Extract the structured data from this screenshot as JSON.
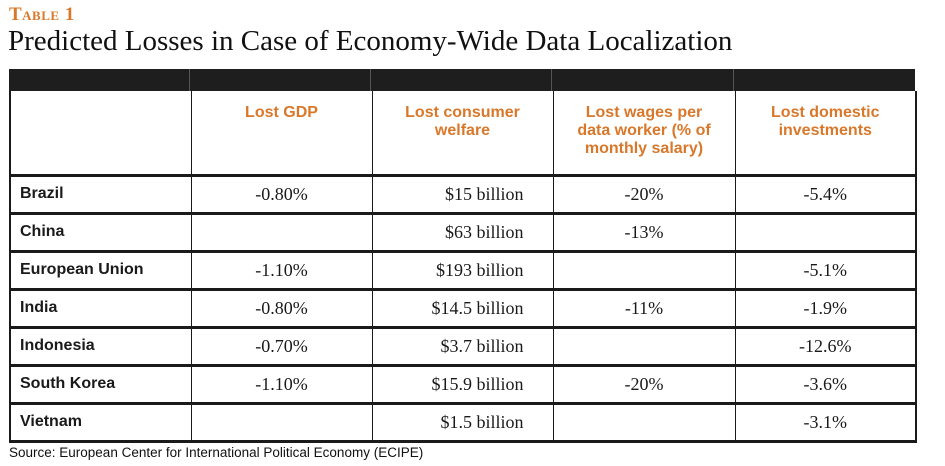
{
  "table_label": "Table 1",
  "title": "Predicted Losses in Case of Economy-Wide Data Localization",
  "headers": [
    "",
    "Lost GDP",
    "Lost consumer welfare",
    "Lost wages per data worker (% of monthly salary)",
    "Lost domestic investments"
  ],
  "header_lines": {
    "welfare": [
      "Lost consumer",
      "welfare"
    ],
    "wages": [
      "Lost wages per",
      "data worker (% of",
      "monthly salary)"
    ],
    "invest": [
      "Lost domestic",
      "investments"
    ]
  },
  "rows": [
    {
      "country": "Brazil",
      "gdp": "-0.80%",
      "welfare": "$15 billion",
      "wages": "-20%",
      "invest": "-5.4%"
    },
    {
      "country": "China",
      "gdp": "",
      "welfare": "$63 billion",
      "wages": "-13%",
      "invest": ""
    },
    {
      "country": "European Union",
      "gdp": "-1.10%",
      "welfare": "$193 billion",
      "wages": "",
      "invest": "-5.1%"
    },
    {
      "country": "India",
      "gdp": "-0.80%",
      "welfare": "$14.5 billion",
      "wages": "-11%",
      "invest": "-1.9%"
    },
    {
      "country": "Indonesia",
      "gdp": "-0.70%",
      "welfare": "$3.7 billion",
      "wages": "",
      "invest": "-12.6%"
    },
    {
      "country": "South Korea",
      "gdp": "-1.10%",
      "welfare": "$15.9 billion",
      "wages": "-20%",
      "invest": "-3.6%"
    },
    {
      "country": "Vietnam",
      "gdp": "",
      "welfare": "$1.5 billion",
      "wages": "",
      "invest": "-3.1%"
    }
  ],
  "source": "Source: European Center for International Political Economy (ECIPE)",
  "colors": {
    "accent": "#d9782a",
    "header_bar": "#1e1e1e",
    "text": "#1a1a1a"
  }
}
